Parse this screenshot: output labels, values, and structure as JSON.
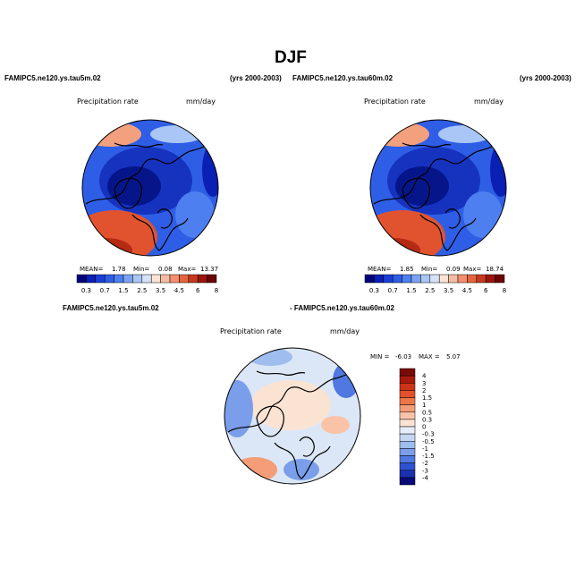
{
  "figure": {
    "title": "DJF",
    "left_case": "FAMIPC5.ne120.ys.tau5m.02",
    "left_years": "(yrs 2000-2003)",
    "right_case": "FAMIPC5.ne120.ys.tau60m.02",
    "right_years": "(yrs 2000-2003)",
    "diff_case_a": "FAMIPC5.ne120.ys.tau5m.02",
    "diff_case_b": "- FAMIPC5.ne120.ys.tau60m.02"
  },
  "chart_data": [
    {
      "type": "heatmap",
      "panel": "left",
      "title": "Precipitation rate",
      "units": "mm/day",
      "projection": "north polar stereographic",
      "stats": {
        "mean_label": "MEAN=",
        "mean": "1.78",
        "min_label": "Min=",
        "min": "0.08",
        "max_label": "Max=",
        "max": "13.37"
      },
      "colorbar_levels": [
        "0.3",
        "0.7",
        "1",
        "1.5",
        "2",
        "2.5",
        "3",
        "3.5",
        "4",
        "4.5",
        "5",
        "6",
        "7",
        "8"
      ],
      "colorbar_labels": [
        "0.3",
        "0.7",
        "1.5",
        "2.5",
        "3.5",
        "4.5",
        "6",
        "8"
      ],
      "colorbar_colors": [
        "#03037d",
        "#0a1fb3",
        "#1a3fd6",
        "#2f5ee6",
        "#4d7ff0",
        "#7aa3f5",
        "#a9c6f7",
        "#d6e3f7",
        "#fbe3d6",
        "#f7bca3",
        "#f28f6d",
        "#e5643f",
        "#c7381c",
        "#9c150b",
        "#6b0606"
      ]
    },
    {
      "type": "heatmap",
      "panel": "right",
      "title": "Precipitation rate",
      "units": "mm/day",
      "projection": "north polar stereographic",
      "stats": {
        "mean_label": "MEAN=",
        "mean": "1.85",
        "min_label": "Min=",
        "min": "0.09",
        "max_label": "Max=",
        "max": "18.74"
      },
      "colorbar_levels": [
        "0.3",
        "0.7",
        "1",
        "1.5",
        "2",
        "2.5",
        "3",
        "3.5",
        "4",
        "4.5",
        "5",
        "6",
        "7",
        "8"
      ],
      "colorbar_labels": [
        "0.3",
        "0.7",
        "1.5",
        "2.5",
        "3.5",
        "4.5",
        "6",
        "8"
      ],
      "colorbar_colors": [
        "#03037d",
        "#0a1fb3",
        "#1a3fd6",
        "#2f5ee6",
        "#4d7ff0",
        "#7aa3f5",
        "#a9c6f7",
        "#d6e3f7",
        "#fbe3d6",
        "#f7bca3",
        "#f28f6d",
        "#e5643f",
        "#c7381c",
        "#9c150b",
        "#6b0606"
      ]
    },
    {
      "type": "heatmap",
      "panel": "difference",
      "title": "Precipitation rate",
      "units": "mm/day",
      "projection": "north polar stereographic",
      "stats": {
        "min_label": "MIN =",
        "min": "-6.03",
        "max_label": "MAX =",
        "max": "5.07"
      },
      "colorbar_levels": [
        "4",
        "3",
        "2",
        "1.5",
        "1",
        "0.5",
        "0.3",
        "0",
        "-0.3",
        "-0.5",
        "-1",
        "-1.5",
        "-2",
        "-3",
        "-4"
      ],
      "colorbar_colors": [
        "#7a0a05",
        "#a81a0c",
        "#cc3318",
        "#e2512c",
        "#ee7548",
        "#f59d78",
        "#fac3a8",
        "#fbe3d3",
        "#e4edf8",
        "#c4d6f2",
        "#9fbdee",
        "#7a9ee9",
        "#5078e0",
        "#2f52d0",
        "#1a32b0",
        "#070a78"
      ]
    }
  ],
  "colors": {
    "ocean_blue": "#2f5ee6",
    "arctic_blue": "#1633c0",
    "warm_red": "#e0532e",
    "diff_bg": "#dbe7f6"
  }
}
